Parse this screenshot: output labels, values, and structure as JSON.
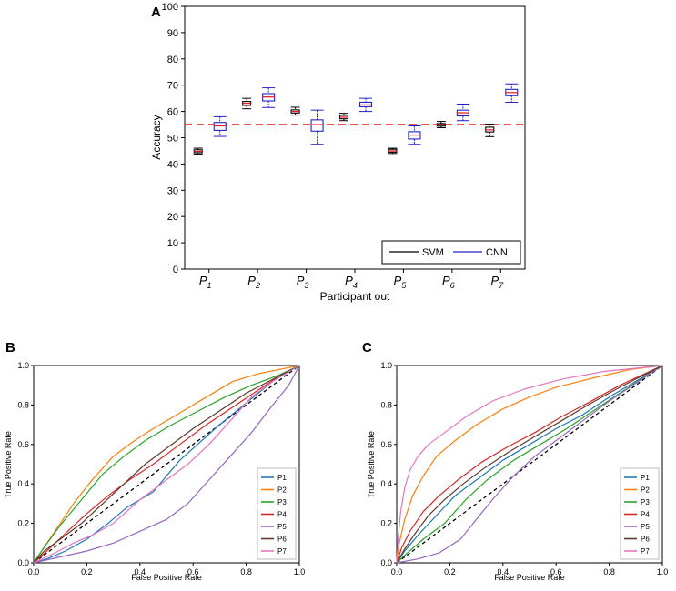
{
  "chart_data": [
    {
      "panel": "A",
      "type": "box",
      "title": "A",
      "xlabel": "Participant out",
      "ylabel": "Accuracy",
      "ylim": [
        0,
        100
      ],
      "yticks": [
        "0",
        "10",
        "20",
        "30",
        "40",
        "50",
        "60",
        "70",
        "80",
        "90",
        "100"
      ],
      "categories": [
        {
          "base": "P",
          "sub": "1"
        },
        {
          "base": "P",
          "sub": "2"
        },
        {
          "base": "P",
          "sub": "3"
        },
        {
          "base": "P",
          "sub": "4"
        },
        {
          "base": "P",
          "sub": "5"
        },
        {
          "base": "P",
          "sub": "6"
        },
        {
          "base": "P",
          "sub": "7"
        }
      ],
      "reference_line": {
        "value": 55,
        "color": "#e8171b",
        "style": "dashed"
      },
      "legend": {
        "placement": "bottom-right"
      },
      "series": [
        {
          "name": "SVM",
          "color": "#000000",
          "boxes": [
            {
              "whislo": 43.8,
              "q1": 44.3,
              "med": 44.8,
              "q3": 45.4,
              "whishi": 46.0
            },
            {
              "whislo": 61.0,
              "q1": 62.3,
              "med": 63.1,
              "q3": 63.8,
              "whishi": 65.0
            },
            {
              "whislo": 58.6,
              "q1": 59.4,
              "med": 60.0,
              "q3": 60.6,
              "whishi": 61.6
            },
            {
              "whislo": 56.5,
              "q1": 57.2,
              "med": 57.8,
              "q3": 58.5,
              "whishi": 59.3
            },
            {
              "whislo": 44.0,
              "q1": 44.5,
              "med": 45.0,
              "q3": 45.6,
              "whishi": 46.0
            },
            {
              "whislo": 53.8,
              "q1": 54.4,
              "med": 55.0,
              "q3": 55.4,
              "whishi": 56.2
            },
            {
              "whislo": 50.4,
              "q1": 52.2,
              "med": 53.0,
              "q3": 54.0,
              "whishi": 55.2
            }
          ]
        },
        {
          "name": "CNN",
          "color": "#2222cc",
          "boxes": [
            {
              "whislo": 50.5,
              "q1": 52.8,
              "med": 54.5,
              "q3": 55.8,
              "whishi": 58.0
            },
            {
              "whislo": 61.5,
              "q1": 64.0,
              "med": 65.5,
              "q3": 66.8,
              "whishi": 69.0
            },
            {
              "whislo": 47.5,
              "q1": 52.5,
              "med": 55.0,
              "q3": 56.8,
              "whishi": 60.5
            },
            {
              "whislo": 60.0,
              "q1": 61.8,
              "med": 62.5,
              "q3": 63.5,
              "whishi": 65.0
            },
            {
              "whislo": 47.5,
              "q1": 49.5,
              "med": 51.0,
              "q3": 52.3,
              "whishi": 54.5
            },
            {
              "whislo": 56.5,
              "q1": 58.3,
              "med": 59.5,
              "q3": 60.5,
              "whishi": 62.8
            },
            {
              "whislo": 63.5,
              "q1": 66.0,
              "med": 67.2,
              "q3": 68.4,
              "whishi": 70.5
            }
          ]
        }
      ]
    },
    {
      "panel": "B",
      "type": "line",
      "title": "B",
      "xlabel": "False Positive Rate",
      "ylabel": "True Positive Rate",
      "xlim": [
        0,
        1
      ],
      "ylim": [
        0,
        1
      ],
      "xticks": [
        "0.0",
        "0.2",
        "0.4",
        "0.6",
        "0.8",
        "1.0"
      ],
      "yticks": [
        "0.0",
        "0.2",
        "0.4",
        "0.6",
        "0.8",
        "1.0"
      ],
      "legend": {
        "placement": "bottom-right"
      },
      "chance_line": {
        "from": [
          0,
          0
        ],
        "to": [
          1,
          1
        ],
        "style": "dashed",
        "color": "#000000"
      },
      "series": [
        {
          "name": "P1",
          "color": "#1f77b4",
          "points": [
            [
              0,
              0
            ],
            [
              0.05,
              0.02
            ],
            [
              0.12,
              0.06
            ],
            [
              0.2,
              0.12
            ],
            [
              0.28,
              0.2
            ],
            [
              0.35,
              0.28
            ],
            [
              0.4,
              0.32
            ],
            [
              0.45,
              0.36
            ],
            [
              0.5,
              0.44
            ],
            [
              0.55,
              0.52
            ],
            [
              0.6,
              0.58
            ],
            [
              0.7,
              0.7
            ],
            [
              0.8,
              0.81
            ],
            [
              0.9,
              0.92
            ],
            [
              1,
              1
            ]
          ]
        },
        {
          "name": "P2",
          "color": "#ff7f0e",
          "points": [
            [
              0,
              0
            ],
            [
              0.03,
              0.06
            ],
            [
              0.08,
              0.16
            ],
            [
              0.15,
              0.3
            ],
            [
              0.22,
              0.42
            ],
            [
              0.3,
              0.54
            ],
            [
              0.38,
              0.62
            ],
            [
              0.45,
              0.68
            ],
            [
              0.55,
              0.76
            ],
            [
              0.65,
              0.84
            ],
            [
              0.75,
              0.92
            ],
            [
              0.85,
              0.96
            ],
            [
              1,
              1
            ]
          ]
        },
        {
          "name": "P3",
          "color": "#2ca02c",
          "points": [
            [
              0,
              0
            ],
            [
              0.04,
              0.08
            ],
            [
              0.1,
              0.19
            ],
            [
              0.18,
              0.32
            ],
            [
              0.26,
              0.45
            ],
            [
              0.34,
              0.54
            ],
            [
              0.42,
              0.62
            ],
            [
              0.52,
              0.7
            ],
            [
              0.62,
              0.77
            ],
            [
              0.72,
              0.84
            ],
            [
              0.82,
              0.9
            ],
            [
              0.92,
              0.95
            ],
            [
              1,
              1
            ]
          ]
        },
        {
          "name": "P4",
          "color": "#d62728",
          "points": [
            [
              0,
              0
            ],
            [
              0.05,
              0.06
            ],
            [
              0.12,
              0.15
            ],
            [
              0.2,
              0.25
            ],
            [
              0.28,
              0.34
            ],
            [
              0.36,
              0.42
            ],
            [
              0.45,
              0.5
            ],
            [
              0.55,
              0.6
            ],
            [
              0.65,
              0.7
            ],
            [
              0.75,
              0.79
            ],
            [
              0.85,
              0.88
            ],
            [
              0.93,
              0.95
            ],
            [
              1,
              1
            ]
          ]
        },
        {
          "name": "P5",
          "color": "#9467bd",
          "points": [
            [
              0,
              0
            ],
            [
              0.1,
              0.03
            ],
            [
              0.2,
              0.06
            ],
            [
              0.3,
              0.1
            ],
            [
              0.4,
              0.16
            ],
            [
              0.5,
              0.22
            ],
            [
              0.58,
              0.3
            ],
            [
              0.66,
              0.42
            ],
            [
              0.74,
              0.54
            ],
            [
              0.82,
              0.66
            ],
            [
              0.9,
              0.8
            ],
            [
              0.96,
              0.9
            ],
            [
              1,
              1
            ]
          ]
        },
        {
          "name": "P6",
          "color": "#5d3a2c",
          "points": [
            [
              0,
              0
            ],
            [
              0.04,
              0.06
            ],
            [
              0.1,
              0.12
            ],
            [
              0.18,
              0.2
            ],
            [
              0.26,
              0.3
            ],
            [
              0.34,
              0.4
            ],
            [
              0.42,
              0.5
            ],
            [
              0.5,
              0.58
            ],
            [
              0.6,
              0.68
            ],
            [
              0.7,
              0.77
            ],
            [
              0.8,
              0.86
            ],
            [
              0.9,
              0.93
            ],
            [
              1,
              1
            ]
          ]
        },
        {
          "name": "P7",
          "color": "#e377c2",
          "points": [
            [
              0,
              0
            ],
            [
              0.08,
              0.05
            ],
            [
              0.15,
              0.1
            ],
            [
              0.22,
              0.14
            ],
            [
              0.3,
              0.2
            ],
            [
              0.4,
              0.32
            ],
            [
              0.5,
              0.42
            ],
            [
              0.58,
              0.5
            ],
            [
              0.66,
              0.6
            ],
            [
              0.74,
              0.72
            ],
            [
              0.82,
              0.84
            ],
            [
              0.9,
              0.92
            ],
            [
              1,
              1
            ]
          ]
        }
      ]
    },
    {
      "panel": "C",
      "type": "line",
      "title": "C",
      "xlabel": "False Positive Rate",
      "ylabel": "True Positive Rate",
      "xlim": [
        0,
        1
      ],
      "ylim": [
        0,
        1
      ],
      "xticks": [
        "0.0",
        "0.2",
        "0.4",
        "0.6",
        "0.8",
        "1.0"
      ],
      "yticks": [
        "0.0",
        "0.2",
        "0.4",
        "0.6",
        "0.8",
        "1.0"
      ],
      "legend": {
        "placement": "bottom-right"
      },
      "chance_line": {
        "from": [
          0,
          0
        ],
        "to": [
          1,
          1
        ],
        "style": "dashed",
        "color": "#000000"
      },
      "series": [
        {
          "name": "P1",
          "color": "#1f77b4",
          "points": [
            [
              0,
              0
            ],
            [
              0.03,
              0.06
            ],
            [
              0.08,
              0.14
            ],
            [
              0.15,
              0.24
            ],
            [
              0.22,
              0.34
            ],
            [
              0.3,
              0.42
            ],
            [
              0.4,
              0.52
            ],
            [
              0.5,
              0.6
            ],
            [
              0.6,
              0.68
            ],
            [
              0.7,
              0.75
            ],
            [
              0.8,
              0.84
            ],
            [
              0.9,
              0.92
            ],
            [
              1,
              1
            ]
          ]
        },
        {
          "name": "P2",
          "color": "#ff7f0e",
          "points": [
            [
              0,
              0
            ],
            [
              0.01,
              0.1
            ],
            [
              0.03,
              0.22
            ],
            [
              0.06,
              0.34
            ],
            [
              0.1,
              0.44
            ],
            [
              0.15,
              0.54
            ],
            [
              0.22,
              0.62
            ],
            [
              0.3,
              0.7
            ],
            [
              0.4,
              0.78
            ],
            [
              0.5,
              0.84
            ],
            [
              0.6,
              0.89
            ],
            [
              0.75,
              0.94
            ],
            [
              0.88,
              0.98
            ],
            [
              1,
              1
            ]
          ]
        },
        {
          "name": "P3",
          "color": "#2ca02c",
          "points": [
            [
              0,
              0
            ],
            [
              0.04,
              0.05
            ],
            [
              0.1,
              0.12
            ],
            [
              0.18,
              0.2
            ],
            [
              0.26,
              0.32
            ],
            [
              0.34,
              0.42
            ],
            [
              0.44,
              0.52
            ],
            [
              0.54,
              0.6
            ],
            [
              0.64,
              0.68
            ],
            [
              0.74,
              0.77
            ],
            [
              0.84,
              0.86
            ],
            [
              0.93,
              0.94
            ],
            [
              1,
              1
            ]
          ]
        },
        {
          "name": "P4",
          "color": "#d62728",
          "points": [
            [
              0,
              0
            ],
            [
              0.02,
              0.08
            ],
            [
              0.05,
              0.16
            ],
            [
              0.1,
              0.26
            ],
            [
              0.16,
              0.34
            ],
            [
              0.23,
              0.42
            ],
            [
              0.32,
              0.51
            ],
            [
              0.42,
              0.59
            ],
            [
              0.52,
              0.66
            ],
            [
              0.62,
              0.74
            ],
            [
              0.72,
              0.81
            ],
            [
              0.84,
              0.9
            ],
            [
              1,
              1
            ]
          ]
        },
        {
          "name": "P5",
          "color": "#9467bd",
          "points": [
            [
              0,
              0
            ],
            [
              0.08,
              0.02
            ],
            [
              0.16,
              0.05
            ],
            [
              0.24,
              0.12
            ],
            [
              0.3,
              0.22
            ],
            [
              0.36,
              0.32
            ],
            [
              0.44,
              0.44
            ],
            [
              0.52,
              0.54
            ],
            [
              0.6,
              0.62
            ],
            [
              0.7,
              0.72
            ],
            [
              0.8,
              0.82
            ],
            [
              0.9,
              0.91
            ],
            [
              1,
              1
            ]
          ]
        },
        {
          "name": "P6",
          "color": "#5d3a2c",
          "points": [
            [
              0,
              0
            ],
            [
              0.03,
              0.07
            ],
            [
              0.07,
              0.15
            ],
            [
              0.12,
              0.24
            ],
            [
              0.18,
              0.32
            ],
            [
              0.25,
              0.4
            ],
            [
              0.33,
              0.48
            ],
            [
              0.42,
              0.56
            ],
            [
              0.52,
              0.64
            ],
            [
              0.62,
              0.72
            ],
            [
              0.72,
              0.8
            ],
            [
              0.84,
              0.89
            ],
            [
              1,
              1
            ]
          ]
        },
        {
          "name": "P7",
          "color": "#e377c2",
          "points": [
            [
              0,
              0
            ],
            [
              0.005,
              0.12
            ],
            [
              0.015,
              0.26
            ],
            [
              0.03,
              0.38
            ],
            [
              0.05,
              0.47
            ],
            [
              0.08,
              0.54
            ],
            [
              0.12,
              0.6
            ],
            [
              0.18,
              0.66
            ],
            [
              0.26,
              0.74
            ],
            [
              0.36,
              0.82
            ],
            [
              0.48,
              0.88
            ],
            [
              0.62,
              0.93
            ],
            [
              0.78,
              0.97
            ],
            [
              1,
              1
            ]
          ]
        }
      ]
    }
  ]
}
